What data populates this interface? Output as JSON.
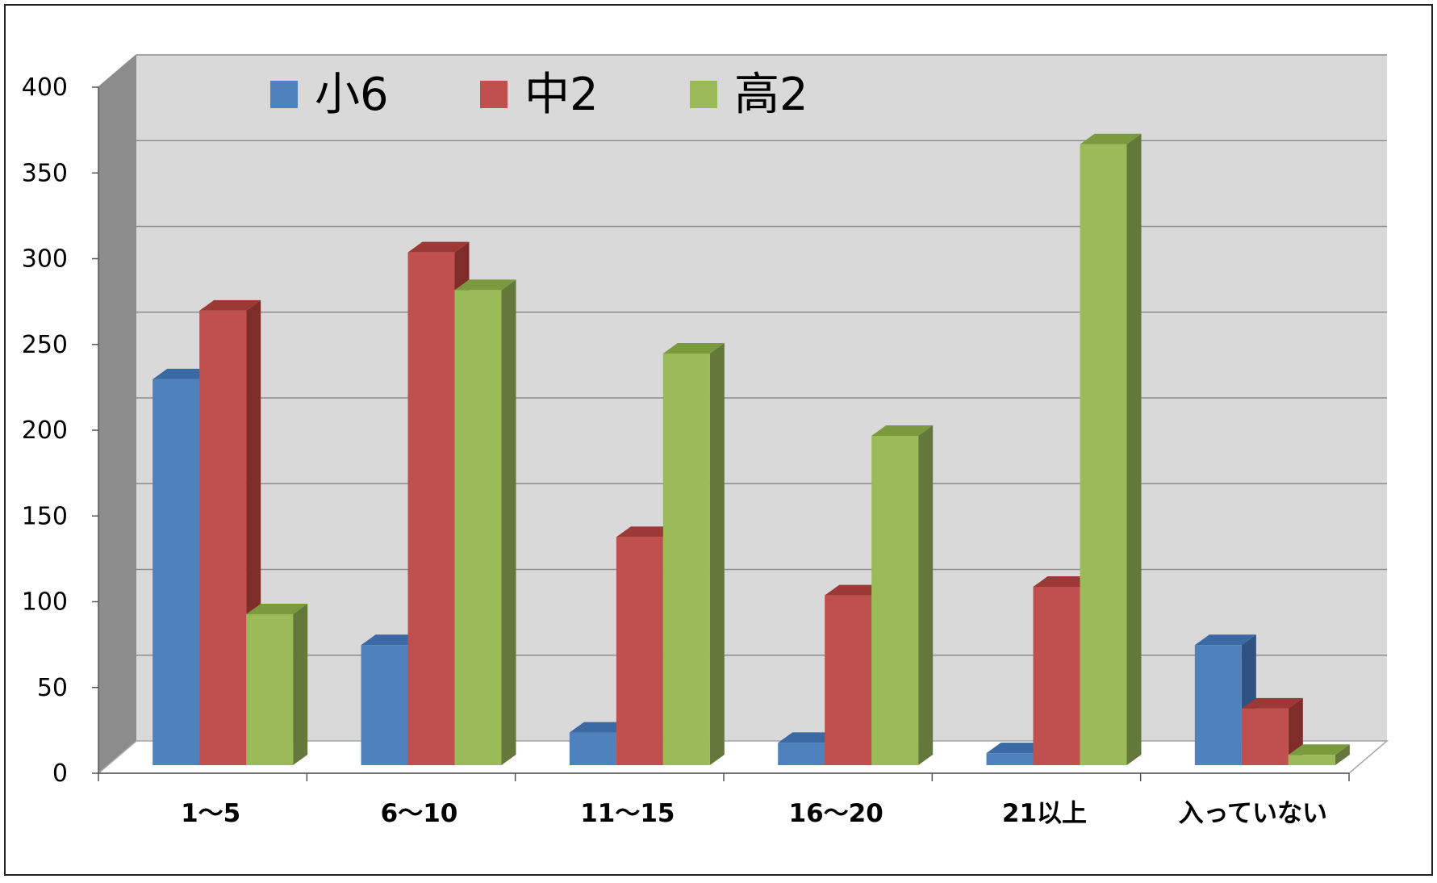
{
  "chart_data": {
    "type": "bar",
    "style": "3d-clustered-column",
    "categories": [
      "1〜5",
      "6〜10",
      "11〜15",
      "16〜20",
      "21以上",
      "入っていない"
    ],
    "series": [
      {
        "name": "小6",
        "values": [
          225,
          70,
          19,
          13,
          7,
          70
        ]
      },
      {
        "name": "中2",
        "values": [
          265,
          299,
          133,
          99,
          104,
          33
        ]
      },
      {
        "name": "高2",
        "values": [
          88,
          277,
          240,
          192,
          362,
          6
        ]
      }
    ],
    "yticks": [
      "0",
      "50",
      "100",
      "150",
      "200",
      "250",
      "300",
      "350",
      "400"
    ],
    "ylim": [
      0,
      400
    ],
    "grid": true,
    "legend": "top-left",
    "colors": {
      "series": [
        {
          "front": "#4f81bd",
          "side": "#2f5283",
          "top": "#3a69a4"
        },
        {
          "front": "#c0504d",
          "side": "#7f2d2b",
          "top": "#9c3936"
        },
        {
          "front": "#9bbb59",
          "side": "#63783a",
          "top": "#7a9a3d"
        }
      ],
      "back_wall": "#d9d9d9",
      "side_wall": "#8c8c8c",
      "grid_line": "#8c8c8c"
    }
  }
}
